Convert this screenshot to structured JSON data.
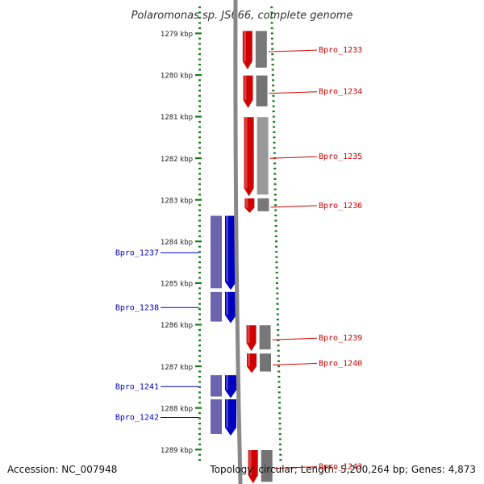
{
  "title": "Polaromonas sp. JS666, complete genome",
  "accession": "Accession: NC_007948",
  "topology": "Topology: circular; Length: 5,200,264 bp; Genes: 4,873",
  "colors": {
    "forward": "#d00000",
    "reverse": "#0000c0",
    "ruler": "#1a7a1a",
    "backbone": "#888888"
  },
  "ruler": [
    {
      "label": "1279 kbp",
      "kbp": 1279
    },
    {
      "label": "1280 kbp",
      "kbp": 1280
    },
    {
      "label": "1281 kbp",
      "kbp": 1281
    },
    {
      "label": "1282 kbp",
      "kbp": 1282
    },
    {
      "label": "1283 kbp",
      "kbp": 1283
    },
    {
      "label": "1284 kbp",
      "kbp": 1284
    },
    {
      "label": "1285 kbp",
      "kbp": 1285
    },
    {
      "label": "1286 kbp",
      "kbp": 1286
    },
    {
      "label": "1287 kbp",
      "kbp": 1287
    },
    {
      "label": "1288 kbp",
      "kbp": 1288
    },
    {
      "label": "1289 kbp",
      "kbp": 1289
    }
  ],
  "genes": [
    {
      "name": "Bpro_1233",
      "strand": "+",
      "start_kbp": 1278.93,
      "end_kbp": 1279.85
    },
    {
      "name": "Bpro_1234",
      "strand": "+",
      "start_kbp": 1280.0,
      "end_kbp": 1280.78
    },
    {
      "name": "Bpro_1235",
      "strand": "+",
      "start_kbp": 1281.0,
      "end_kbp": 1282.9
    },
    {
      "name": "Bpro_1236",
      "strand": "+",
      "start_kbp": 1282.95,
      "end_kbp": 1283.3
    },
    {
      "name": "Bpro_1237",
      "strand": "-",
      "start_kbp": 1283.37,
      "end_kbp": 1285.15
    },
    {
      "name": "Bpro_1238",
      "strand": "-",
      "start_kbp": 1285.2,
      "end_kbp": 1285.95
    },
    {
      "name": "Bpro_1239",
      "strand": "+",
      "start_kbp": 1286.0,
      "end_kbp": 1286.62
    },
    {
      "name": "Bpro_1240",
      "strand": "+",
      "start_kbp": 1286.68,
      "end_kbp": 1287.15
    },
    {
      "name": "Bpro_1241",
      "strand": "-",
      "start_kbp": 1287.2,
      "end_kbp": 1287.75
    },
    {
      "name": "Bpro_1242",
      "strand": "-",
      "start_kbp": 1287.78,
      "end_kbp": 1288.65
    },
    {
      "name": "Bpro_1243",
      "strand": "+",
      "start_kbp": 1289.0,
      "end_kbp": 1289.8
    }
  ]
}
